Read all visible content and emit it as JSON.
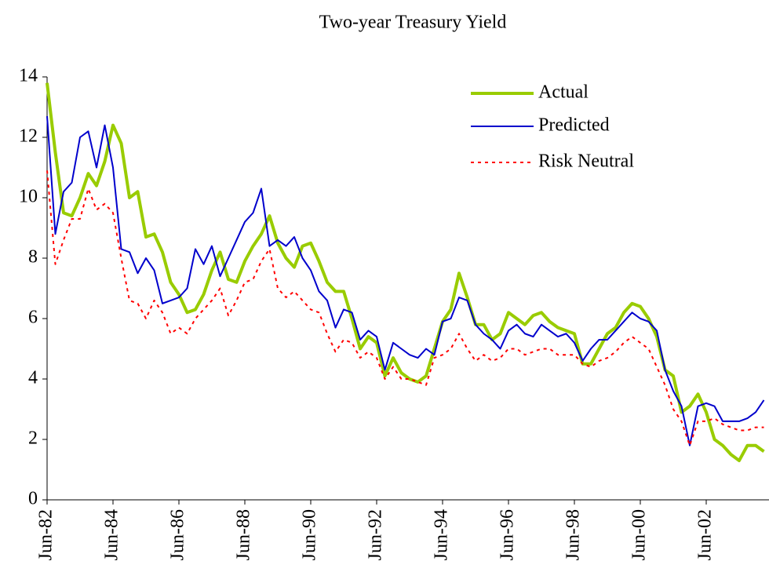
{
  "chart_data": {
    "type": "line",
    "title": "Two-year Treasury Yield",
    "categories": [
      "Jun-82",
      null,
      null,
      null,
      null,
      null,
      null,
      null,
      "Jun-84",
      null,
      null,
      null,
      null,
      null,
      null,
      null,
      "Jun-86",
      null,
      null,
      null,
      null,
      null,
      null,
      null,
      "Jun-88",
      null,
      null,
      null,
      null,
      null,
      null,
      null,
      "Jun-90",
      null,
      null,
      null,
      null,
      null,
      null,
      null,
      "Jun-92",
      null,
      null,
      null,
      null,
      null,
      null,
      null,
      "Jun-94",
      null,
      null,
      null,
      null,
      null,
      null,
      null,
      "Jun-96",
      null,
      null,
      null,
      null,
      null,
      null,
      null,
      "Jun-98",
      null,
      null,
      null,
      null,
      null,
      null,
      null,
      "Jun-00",
      null,
      null,
      null,
      null,
      null,
      null,
      null,
      "Jun-02",
      null,
      null,
      null,
      null,
      null,
      null,
      null
    ],
    "series": [
      {
        "name": "Actual",
        "color": "#99cc00",
        "width": 4,
        "dashed": false,
        "values": [
          13.8,
          11.5,
          9.5,
          9.4,
          10.0,
          10.8,
          10.4,
          11.2,
          12.4,
          11.8,
          10.0,
          10.2,
          8.7,
          8.8,
          8.2,
          7.2,
          6.8,
          6.2,
          6.3,
          6.8,
          7.6,
          8.2,
          7.3,
          7.2,
          7.9,
          8.4,
          8.8,
          9.4,
          8.5,
          8.0,
          7.7,
          8.4,
          8.5,
          7.9,
          7.2,
          6.9,
          6.9,
          6.0,
          5.0,
          5.4,
          5.2,
          4.1,
          4.7,
          4.2,
          4.0,
          3.9,
          4.1,
          5.0,
          5.9,
          6.3,
          7.5,
          6.7,
          5.8,
          5.8,
          5.3,
          5.5,
          6.2,
          6.0,
          5.8,
          6.1,
          6.2,
          5.9,
          5.7,
          5.6,
          5.5,
          4.5,
          4.5,
          5.0,
          5.5,
          5.7,
          6.2,
          6.5,
          6.4,
          6.0,
          5.4,
          4.3,
          4.1,
          2.9,
          3.1,
          3.5,
          2.9,
          2.0,
          1.8,
          1.5,
          1.3,
          1.8,
          1.8,
          1.6
        ]
      },
      {
        "name": "Predicted",
        "color": "#0000cc",
        "width": 2,
        "dashed": false,
        "values": [
          12.7,
          8.8,
          10.2,
          10.5,
          12.0,
          12.2,
          11.0,
          12.4,
          11.0,
          8.3,
          8.2,
          7.5,
          8.0,
          7.6,
          6.5,
          6.6,
          6.7,
          7.0,
          8.3,
          7.8,
          8.4,
          7.4,
          8.0,
          8.6,
          9.2,
          9.5,
          10.3,
          8.4,
          8.6,
          8.4,
          8.7,
          8.0,
          7.6,
          6.9,
          6.6,
          5.7,
          6.3,
          6.2,
          5.3,
          5.6,
          5.4,
          4.3,
          5.2,
          5.0,
          4.8,
          4.7,
          5.0,
          4.8,
          5.9,
          6.0,
          6.7,
          6.6,
          5.8,
          5.5,
          5.3,
          5.0,
          5.6,
          5.8,
          5.5,
          5.4,
          5.8,
          5.6,
          5.4,
          5.5,
          5.2,
          4.6,
          5.0,
          5.3,
          5.3,
          5.6,
          5.9,
          6.2,
          6.0,
          5.9,
          5.6,
          4.3,
          3.6,
          3.1,
          1.8,
          3.1,
          3.2,
          3.1,
          2.6,
          2.6,
          2.6,
          2.7,
          2.9,
          3.3
        ]
      },
      {
        "name": "Risk Neutral",
        "color": "#ff0000",
        "width": 2,
        "dashed": true,
        "values": [
          10.9,
          7.8,
          8.6,
          9.3,
          9.3,
          10.3,
          9.6,
          9.8,
          9.5,
          8.0,
          6.6,
          6.5,
          6.0,
          6.6,
          6.2,
          5.5,
          5.7,
          5.5,
          6.0,
          6.3,
          6.6,
          7.0,
          6.1,
          6.6,
          7.2,
          7.3,
          7.9,
          8.3,
          7.0,
          6.7,
          6.9,
          6.6,
          6.3,
          6.2,
          5.5,
          4.9,
          5.3,
          5.2,
          4.7,
          4.9,
          4.7,
          4.0,
          4.4,
          4.0,
          4.0,
          3.9,
          3.8,
          4.7,
          4.8,
          5.0,
          5.5,
          5.0,
          4.6,
          4.8,
          4.6,
          4.7,
          5.0,
          5.0,
          4.8,
          4.9,
          5.0,
          5.0,
          4.8,
          4.8,
          4.8,
          4.5,
          4.4,
          4.6,
          4.7,
          4.9,
          5.2,
          5.4,
          5.2,
          5.0,
          4.4,
          3.8,
          3.0,
          2.6,
          1.8,
          2.6,
          2.6,
          2.7,
          2.5,
          2.4,
          2.3,
          2.3,
          2.4,
          2.4
        ]
      }
    ],
    "ylim": [
      0,
      14
    ],
    "yticks": [
      0,
      2,
      4,
      6,
      8,
      10,
      12,
      14
    ],
    "grid": false,
    "legend": "upper right"
  }
}
